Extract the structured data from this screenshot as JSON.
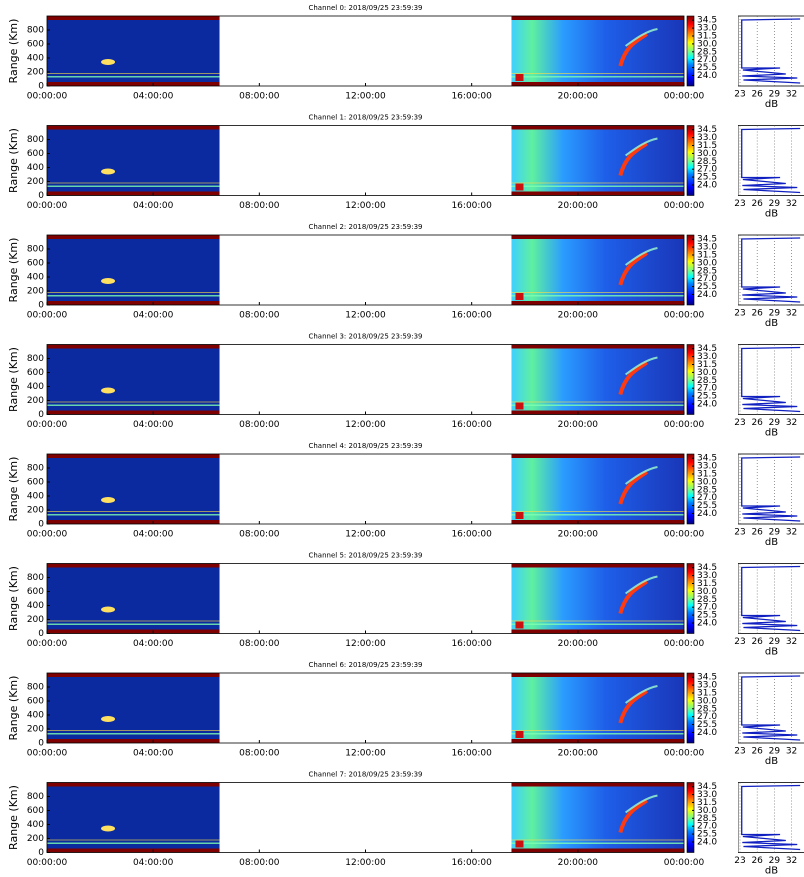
{
  "chart_data": [
    {
      "type": "heatmap",
      "title": "Channel 0: 2018/09/25 23:59:39",
      "y_label": "Range (Km)",
      "xlim": [
        0,
        24
      ],
      "xticks": [
        {
          "value": 0,
          "label": "00:00:00"
        },
        {
          "value": 4,
          "label": "04:00:00"
        },
        {
          "value": 8,
          "label": "08:00:00"
        },
        {
          "value": 12,
          "label": "12:00:00"
        },
        {
          "value": 16,
          "label": "16:00:00"
        },
        {
          "value": 20,
          "label": "20:00:00"
        },
        {
          "value": 24,
          "label": "00:00:00"
        }
      ],
      "ylim": [
        0,
        1000
      ],
      "yticks": [
        0,
        200,
        400,
        600,
        800
      ],
      "colorbar": {
        "lim": [
          22,
          35.3
        ],
        "ticks": [
          {
            "value": 24,
            "label": "24.0"
          },
          25.5,
          {
            "value": 27,
            "label": "27.0"
          },
          28.5,
          {
            "value": 30,
            "label": "30.0"
          },
          31.5,
          {
            "value": 33,
            "label": "33.0"
          },
          34.5
        ]
      },
      "profile": {
        "x_label": "dB",
        "xlim": [
          23,
          34
        ],
        "xticks": [
          23,
          26,
          29,
          32
        ],
        "grid": true
      }
    },
    {
      "type": "heatmap",
      "title": "Channel 1: 2018/09/25 23:59:39",
      "y_label": "Range (Km)",
      "xlim": [
        0,
        24
      ],
      "xticks": [
        {
          "value": 0,
          "label": "00:00:00"
        },
        {
          "value": 4,
          "label": "04:00:00"
        },
        {
          "value": 8,
          "label": "08:00:00"
        },
        {
          "value": 12,
          "label": "12:00:00"
        },
        {
          "value": 16,
          "label": "16:00:00"
        },
        {
          "value": 20,
          "label": "20:00:00"
        },
        {
          "value": 24,
          "label": "00:00:00"
        }
      ],
      "ylim": [
        0,
        1000
      ],
      "yticks": [
        0,
        200,
        400,
        600,
        800
      ],
      "colorbar": {
        "lim": [
          22,
          35.3
        ],
        "ticks": [
          {
            "value": 24,
            "label": "24.0"
          },
          25.5,
          {
            "value": 27,
            "label": "27.0"
          },
          28.5,
          {
            "value": 30,
            "label": "30.0"
          },
          31.5,
          {
            "value": 33,
            "label": "33.0"
          },
          34.5
        ]
      },
      "profile": {
        "x_label": "dB",
        "xlim": [
          23,
          34
        ],
        "xticks": [
          23,
          26,
          29,
          32
        ],
        "grid": true
      }
    },
    {
      "type": "heatmap",
      "title": "Channel 2: 2018/09/25 23:59:39",
      "y_label": "Range (Km)",
      "xlim": [
        0,
        24
      ],
      "xticks": [
        {
          "value": 0,
          "label": "00:00:00"
        },
        {
          "value": 4,
          "label": "04:00:00"
        },
        {
          "value": 8,
          "label": "08:00:00"
        },
        {
          "value": 12,
          "label": "12:00:00"
        },
        {
          "value": 16,
          "label": "16:00:00"
        },
        {
          "value": 20,
          "label": "20:00:00"
        },
        {
          "value": 24,
          "label": "00:00:00"
        }
      ],
      "ylim": [
        0,
        1000
      ],
      "yticks": [
        0,
        200,
        400,
        600,
        800
      ],
      "colorbar": {
        "lim": [
          22,
          35.3
        ],
        "ticks": [
          {
            "value": 24,
            "label": "24.0"
          },
          25.5,
          {
            "value": 27,
            "label": "27.0"
          },
          28.5,
          {
            "value": 30,
            "label": "30.0"
          },
          31.5,
          {
            "value": 33,
            "label": "33.0"
          },
          34.5
        ]
      },
      "profile": {
        "x_label": "dB",
        "xlim": [
          23,
          34
        ],
        "xticks": [
          23,
          26,
          29,
          32
        ],
        "grid": true
      }
    },
    {
      "type": "heatmap",
      "title": "Channel 3: 2018/09/25 23:59:39",
      "y_label": "Range (Km)",
      "xlim": [
        0,
        24
      ],
      "xticks": [
        {
          "value": 0,
          "label": "00:00:00"
        },
        {
          "value": 4,
          "label": "04:00:00"
        },
        {
          "value": 8,
          "label": "08:00:00"
        },
        {
          "value": 12,
          "label": "12:00:00"
        },
        {
          "value": 16,
          "label": "16:00:00"
        },
        {
          "value": 20,
          "label": "20:00:00"
        },
        {
          "value": 24,
          "label": "00:00:00"
        }
      ],
      "ylim": [
        0,
        1000
      ],
      "yticks": [
        0,
        200,
        400,
        600,
        800
      ],
      "colorbar": {
        "lim": [
          22,
          35.3
        ],
        "ticks": [
          {
            "value": 24,
            "label": "24.0"
          },
          25.5,
          {
            "value": 27,
            "label": "27.0"
          },
          28.5,
          {
            "value": 30,
            "label": "30.0"
          },
          31.5,
          {
            "value": 33,
            "label": "33.0"
          },
          34.5
        ]
      },
      "profile": {
        "x_label": "dB",
        "xlim": [
          23,
          34
        ],
        "xticks": [
          23,
          26,
          29,
          32
        ],
        "grid": true
      }
    },
    {
      "type": "heatmap",
      "title": "Channel 4: 2018/09/25 23:59:39",
      "y_label": "Range (Km)",
      "xlim": [
        0,
        24
      ],
      "xticks": [
        {
          "value": 0,
          "label": "00:00:00"
        },
        {
          "value": 4,
          "label": "04:00:00"
        },
        {
          "value": 8,
          "label": "08:00:00"
        },
        {
          "value": 12,
          "label": "12:00:00"
        },
        {
          "value": 16,
          "label": "16:00:00"
        },
        {
          "value": 20,
          "label": "20:00:00"
        },
        {
          "value": 24,
          "label": "00:00:00"
        }
      ],
      "ylim": [
        0,
        1000
      ],
      "yticks": [
        0,
        200,
        400,
        600,
        800
      ],
      "colorbar": {
        "lim": [
          22,
          35.3
        ],
        "ticks": [
          {
            "value": 24,
            "label": "24.0"
          },
          25.5,
          {
            "value": 27,
            "label": "27.0"
          },
          28.5,
          {
            "value": 30,
            "label": "30.0"
          },
          31.5,
          {
            "value": 33,
            "label": "33.0"
          },
          34.5
        ]
      },
      "profile": {
        "x_label": "dB",
        "xlim": [
          23,
          34
        ],
        "xticks": [
          23,
          26,
          29,
          32
        ],
        "grid": true
      }
    },
    {
      "type": "heatmap",
      "title": "Channel 5: 2018/09/25 23:59:39",
      "y_label": "Range (Km)",
      "xlim": [
        0,
        24
      ],
      "xticks": [
        {
          "value": 0,
          "label": "00:00:00"
        },
        {
          "value": 4,
          "label": "04:00:00"
        },
        {
          "value": 8,
          "label": "08:00:00"
        },
        {
          "value": 12,
          "label": "12:00:00"
        },
        {
          "value": 16,
          "label": "16:00:00"
        },
        {
          "value": 20,
          "label": "20:00:00"
        },
        {
          "value": 24,
          "label": "00:00:00"
        }
      ],
      "ylim": [
        0,
        1000
      ],
      "yticks": [
        0,
        200,
        400,
        600,
        800
      ],
      "colorbar": {
        "lim": [
          22,
          35.3
        ],
        "ticks": [
          {
            "value": 24,
            "label": "24.0"
          },
          25.5,
          {
            "value": 27,
            "label": "27.0"
          },
          28.5,
          {
            "value": 30,
            "label": "30.0"
          },
          31.5,
          {
            "value": 33,
            "label": "33.0"
          },
          34.5
        ]
      },
      "profile": {
        "x_label": "dB",
        "xlim": [
          23,
          34
        ],
        "xticks": [
          23,
          26,
          29,
          32
        ],
        "grid": true
      }
    },
    {
      "type": "heatmap",
      "title": "Channel 6: 2018/09/25 23:59:39",
      "y_label": "Range (Km)",
      "xlim": [
        0,
        24
      ],
      "xticks": [
        {
          "value": 0,
          "label": "00:00:00"
        },
        {
          "value": 4,
          "label": "04:00:00"
        },
        {
          "value": 8,
          "label": "08:00:00"
        },
        {
          "value": 12,
          "label": "12:00:00"
        },
        {
          "value": 16,
          "label": "16:00:00"
        },
        {
          "value": 20,
          "label": "20:00:00"
        },
        {
          "value": 24,
          "label": "00:00:00"
        }
      ],
      "ylim": [
        0,
        1000
      ],
      "yticks": [
        0,
        200,
        400,
        600,
        800
      ],
      "colorbar": {
        "lim": [
          22,
          35.3
        ],
        "ticks": [
          {
            "value": 24,
            "label": "24.0"
          },
          25.5,
          {
            "value": 27,
            "label": "27.0"
          },
          28.5,
          {
            "value": 30,
            "label": "30.0"
          },
          31.5,
          {
            "value": 33,
            "label": "33.0"
          },
          34.5
        ]
      },
      "profile": {
        "x_label": "dB",
        "xlim": [
          23,
          34
        ],
        "xticks": [
          23,
          26,
          29,
          32
        ],
        "grid": true
      }
    },
    {
      "type": "heatmap",
      "title": "Channel 7: 2018/09/25 23:59:39",
      "y_label": "Range (Km)",
      "xlim": [
        0,
        24
      ],
      "xticks": [
        {
          "value": 0,
          "label": "00:00:00"
        },
        {
          "value": 4,
          "label": "04:00:00"
        },
        {
          "value": 8,
          "label": "08:00:00"
        },
        {
          "value": 12,
          "label": "12:00:00"
        },
        {
          "value": 16,
          "label": "16:00:00"
        },
        {
          "value": 20,
          "label": "20:00:00"
        },
        {
          "value": 24,
          "label": "00:00:00"
        }
      ],
      "ylim": [
        0,
        1000
      ],
      "yticks": [
        0,
        200,
        400,
        600,
        800
      ],
      "colorbar": {
        "lim": [
          22,
          35.3
        ],
        "ticks": [
          {
            "value": 24,
            "label": "24.0"
          },
          25.5,
          {
            "value": 27,
            "label": "27.0"
          },
          28.5,
          {
            "value": 30,
            "label": "30.0"
          },
          31.5,
          {
            "value": 33,
            "label": "33.0"
          },
          34.5
        ]
      },
      "profile": {
        "x_label": "dB",
        "xlim": [
          23,
          34
        ],
        "xticks": [
          23,
          26,
          29,
          32
        ],
        "grid": true
      }
    }
  ]
}
